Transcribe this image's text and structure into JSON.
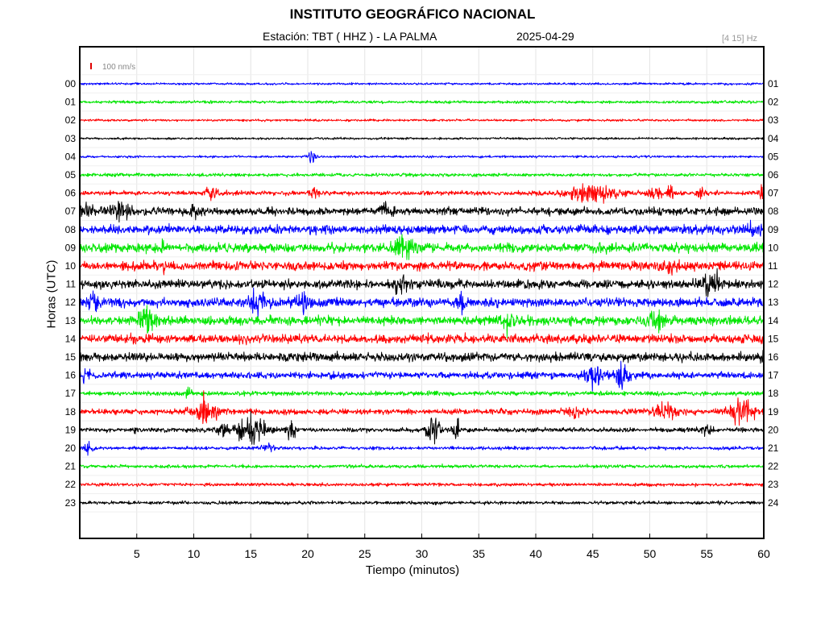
{
  "header": {
    "title": "INSTITUTO GEOGRÁFICO NACIONAL",
    "station": "Estación:  TBT ( HHZ ) - LA PALMA",
    "date": "2025-04-29",
    "band": "[4 15] Hz"
  },
  "chart_data": {
    "type": "line",
    "title": "INSTITUTO GEOGRÁFICO NACIONAL",
    "xlabel": "Tiempo (minutos)",
    "ylabel": "Horas (UTC)",
    "xlim": [
      0,
      60
    ],
    "x_ticks": [
      "5",
      "10",
      "15",
      "20",
      "25",
      "30",
      "35",
      "40",
      "45",
      "50",
      "55",
      "60"
    ],
    "left_hour_labels": [
      "00",
      "01",
      "02",
      "03",
      "04",
      "05",
      "06",
      "07",
      "08",
      "09",
      "10",
      "11",
      "12",
      "13",
      "14",
      "15",
      "16",
      "17",
      "18",
      "19",
      "20",
      "21",
      "22",
      "23"
    ],
    "right_hour_labels": [
      "01",
      "02",
      "03",
      "04",
      "05",
      "06",
      "07",
      "08",
      "09",
      "10",
      "11",
      "12",
      "13",
      "14",
      "15",
      "16",
      "17",
      "18",
      "19",
      "20",
      "21",
      "22",
      "23",
      "24"
    ],
    "scale_label": "100 nm/s",
    "scale_color": "#e00000",
    "grid": true,
    "colors": [
      "#0000ff",
      "#00e600",
      "#ff0000",
      "#000000"
    ],
    "series": [
      {
        "hour": "00",
        "noise": 2,
        "events": []
      },
      {
        "hour": "01",
        "noise": 2.5,
        "events": []
      },
      {
        "hour": "02",
        "noise": 2,
        "events": []
      },
      {
        "hour": "03",
        "noise": 2,
        "events": []
      },
      {
        "hour": "04",
        "noise": 2,
        "events": [
          {
            "t": 20.3,
            "amp": 12,
            "dur": 0.6
          }
        ]
      },
      {
        "hour": "05",
        "noise": 3,
        "events": []
      },
      {
        "hour": "06",
        "noise": 4,
        "events": [
          {
            "t": 11.5,
            "amp": 14,
            "dur": 1
          },
          {
            "t": 20.5,
            "amp": 8,
            "dur": 0.8
          },
          {
            "t": 45,
            "amp": 18,
            "dur": 4
          },
          {
            "t": 50.5,
            "amp": 10,
            "dur": 1.2
          },
          {
            "t": 51.8,
            "amp": 16,
            "dur": 0.5
          },
          {
            "t": 54.5,
            "amp": 9,
            "dur": 0.6
          },
          {
            "t": 59.8,
            "amp": 14,
            "dur": 0.4
          }
        ]
      },
      {
        "hour": "07",
        "noise": 7,
        "events": [
          {
            "t": 0.5,
            "amp": 14,
            "dur": 1
          },
          {
            "t": 3.5,
            "amp": 14,
            "dur": 2
          },
          {
            "t": 10,
            "amp": 10,
            "dur": 0.8
          },
          {
            "t": 26.8,
            "amp": 16,
            "dur": 1.2
          }
        ]
      },
      {
        "hour": "08",
        "noise": 8,
        "events": [
          {
            "t": 59,
            "amp": 14,
            "dur": 1.5
          }
        ]
      },
      {
        "hour": "09",
        "noise": 8,
        "events": [
          {
            "t": 28.5,
            "amp": 20,
            "dur": 1.8
          },
          {
            "t": 7.3,
            "amp": 18,
            "dur": 0.2
          }
        ]
      },
      {
        "hour": "10",
        "noise": 8,
        "events": [
          {
            "t": 52,
            "amp": 12,
            "dur": 1.2
          },
          {
            "t": 7.3,
            "amp": 14,
            "dur": 0.2
          }
        ]
      },
      {
        "hour": "11",
        "noise": 8,
        "events": [
          {
            "t": 28,
            "amp": 14,
            "dur": 1.3
          },
          {
            "t": 55.5,
            "amp": 16,
            "dur": 2
          }
        ]
      },
      {
        "hour": "12",
        "noise": 8,
        "events": [
          {
            "t": 1.3,
            "amp": 14,
            "dur": 1
          },
          {
            "t": 15.5,
            "amp": 18,
            "dur": 2
          },
          {
            "t": 19.5,
            "amp": 12,
            "dur": 1.2
          },
          {
            "t": 33.5,
            "amp": 12,
            "dur": 1
          }
        ]
      },
      {
        "hour": "13",
        "noise": 8,
        "events": [
          {
            "t": 6,
            "amp": 20,
            "dur": 1.5
          },
          {
            "t": 37.5,
            "amp": 16,
            "dur": 1.2
          },
          {
            "t": 50.5,
            "amp": 14,
            "dur": 2
          }
        ]
      },
      {
        "hour": "14",
        "noise": 8,
        "events": []
      },
      {
        "hour": "15",
        "noise": 8,
        "events": [
          {
            "t": 59.8,
            "amp": 12,
            "dur": 0.3
          }
        ]
      },
      {
        "hour": "16",
        "noise": 6,
        "events": [
          {
            "t": 0.5,
            "amp": 12,
            "dur": 0.8
          },
          {
            "t": 45,
            "amp": 20,
            "dur": 1.5
          },
          {
            "t": 47.5,
            "amp": 22,
            "dur": 1.5
          }
        ]
      },
      {
        "hour": "17",
        "noise": 4,
        "events": [
          {
            "t": 9.5,
            "amp": 8,
            "dur": 0.6
          }
        ]
      },
      {
        "hour": "18",
        "noise": 5,
        "events": [
          {
            "t": 11,
            "amp": 22,
            "dur": 2
          },
          {
            "t": 43.5,
            "amp": 10,
            "dur": 1.5
          },
          {
            "t": 51.5,
            "amp": 14,
            "dur": 2
          },
          {
            "t": 58,
            "amp": 26,
            "dur": 2
          }
        ]
      },
      {
        "hour": "19",
        "noise": 4,
        "events": [
          {
            "t": 5,
            "amp": 10,
            "dur": 0.5
          },
          {
            "t": 12.5,
            "amp": 12,
            "dur": 1
          },
          {
            "t": 15,
            "amp": 30,
            "dur": 2.5
          },
          {
            "t": 18.5,
            "amp": 20,
            "dur": 0.8
          },
          {
            "t": 31,
            "amp": 30,
            "dur": 1
          },
          {
            "t": 33,
            "amp": 16,
            "dur": 0.8
          },
          {
            "t": 55,
            "amp": 8,
            "dur": 1
          }
        ]
      },
      {
        "hour": "20",
        "noise": 3,
        "events": [
          {
            "t": 0.8,
            "amp": 10,
            "dur": 0.8
          },
          {
            "t": 16.5,
            "amp": 8,
            "dur": 1
          }
        ]
      },
      {
        "hour": "21",
        "noise": 3,
        "events": []
      },
      {
        "hour": "22",
        "noise": 3,
        "events": []
      },
      {
        "hour": "23",
        "noise": 3,
        "events": []
      }
    ]
  }
}
